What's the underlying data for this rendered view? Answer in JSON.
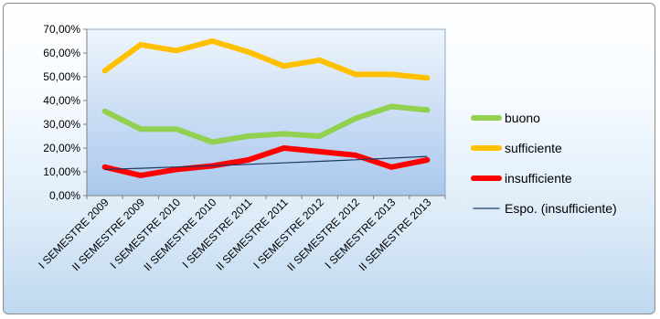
{
  "chart_data": {
    "type": "line",
    "categories": [
      "I SEMESTRE 2009",
      "II SEMESTRE 2009",
      "I SEMESTRE 2010",
      "II SEMESTRE 2010",
      "I SEMESTRE 2011",
      "II SEMESTRE 2011",
      "I SEMESTRE 2012",
      "II SEMESTRE 2012",
      "I SEMESTRE 2013",
      "II SEMESTRE 2013"
    ],
    "series": [
      {
        "name": "buono",
        "color": "#92d050",
        "values": [
          35.5,
          28.0,
          28.0,
          22.5,
          25.0,
          26.0,
          25.0,
          32.5,
          37.5,
          36.0
        ]
      },
      {
        "name": "sufficiente",
        "color": "#ffc000",
        "values": [
          52.5,
          63.5,
          61.0,
          65.0,
          60.5,
          54.5,
          57.0,
          51.0,
          51.0,
          49.5
        ]
      },
      {
        "name": "insufficiente",
        "color": "#ff0000",
        "values": [
          12.0,
          8.5,
          11.0,
          12.5,
          15.0,
          20.0,
          18.5,
          17.0,
          12.0,
          15.0
        ]
      }
    ],
    "trendline": {
      "name": "Espo. (insufficiente)",
      "color": "#1f3864",
      "start": 11.0,
      "end": 16.5
    },
    "y_ticks": [
      "0,00%",
      "10,00%",
      "20,00%",
      "30,00%",
      "40,00%",
      "50,00%",
      "60,00%",
      "70,00%"
    ],
    "ylim": [
      0,
      70
    ],
    "grid": false,
    "legend_position": "right",
    "title": "",
    "xlabel": "",
    "ylabel": ""
  }
}
